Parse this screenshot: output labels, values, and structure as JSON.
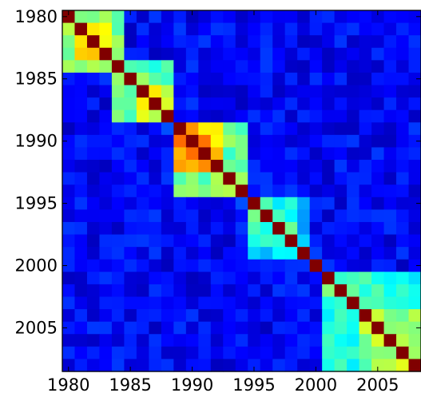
{
  "chart_data": {
    "type": "heatmap",
    "title": "",
    "xlabel": "",
    "ylabel": "",
    "colormap": "jet",
    "value_range": [
      0,
      1
    ],
    "years": [
      1980,
      1981,
      1982,
      1983,
      1984,
      1985,
      1986,
      1987,
      1988,
      1989,
      1990,
      1991,
      1992,
      1993,
      1994,
      1995,
      1996,
      1997,
      1998,
      1999,
      2000,
      2001,
      2002,
      2003,
      2004,
      2005,
      2006,
      2007,
      2008
    ],
    "x_ticks": [
      "1980",
      "1985",
      "1990",
      "1995",
      "2000",
      "2005"
    ],
    "y_ticks": [
      "1980",
      "1985",
      "1990",
      "1995",
      "2000",
      "2005"
    ],
    "tick_positions": [
      1980,
      1985,
      1990,
      1995,
      2000,
      2005
    ],
    "blocks": [
      {
        "years": [
          1980,
          1984
        ],
        "similarity": 0.5
      },
      {
        "years": [
          1981,
          1983
        ],
        "similarity": 0.62
      },
      {
        "years": [
          1984,
          1988
        ],
        "similarity": 0.45
      },
      {
        "years": [
          1986,
          1988
        ],
        "similarity": 0.55
      },
      {
        "years": [
          1989,
          1994
        ],
        "similarity": 0.48
      },
      {
        "years": [
          1989,
          1992
        ],
        "similarity": 0.68
      },
      {
        "years": [
          1995,
          1998
        ],
        "similarity": 0.4
      },
      {
        "years": [
          1995,
          1999
        ],
        "similarity": 0.32
      },
      {
        "years": [
          2001,
          2008
        ],
        "similarity": 0.4
      },
      {
        "years": [
          2004,
          2008
        ],
        "similarity": 0.5
      }
    ],
    "off_diagonal_similarity": 0.12,
    "diagonal_similarity": 1.0
  }
}
